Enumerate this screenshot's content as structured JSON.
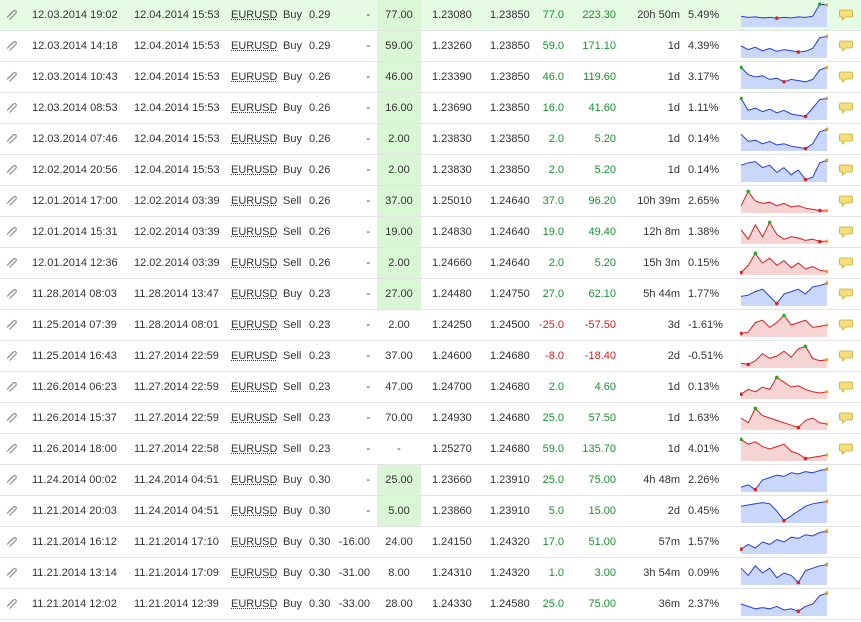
{
  "colors": {
    "positive": "#18922e",
    "negative": "#d42020",
    "buy_fill": "#c9d7fb",
    "buy_line": "#2a3fd0",
    "sell_fill": "#f6d4d4",
    "sell_line": "#d42020"
  },
  "icons": {
    "row_icon": "paperclip-icon",
    "comment_icon": "speech-bubble-icon"
  },
  "trades": [
    {
      "open": "12.03.2014 19:02",
      "close": "12.04.2014 15:53",
      "symbol": "EURUSD",
      "type": "Buy",
      "lots": "0.29",
      "sl": "-",
      "pips": "77.00",
      "open_price": "1.23080",
      "close_price": "1.23850",
      "pips_val": "77.0",
      "profit": "223.30",
      "duration": "20h 50m",
      "gain": "5.49%",
      "comment": true,
      "spark": [
        0.55,
        0.6,
        0.58,
        0.62,
        0.6,
        0.63,
        0.6,
        0.62,
        0.58,
        0.6,
        0.55,
        0.05,
        0.08
      ]
    },
    {
      "open": "12.03.2014 14:18",
      "close": "12.04.2014 15:53",
      "symbol": "EURUSD",
      "type": "Buy",
      "lots": "0.29",
      "sl": "-",
      "pips": "59.00",
      "open_price": "1.23260",
      "close_price": "1.23850",
      "pips_val": "59.0",
      "profit": "171.10",
      "duration": "1d",
      "gain": "4.39%",
      "comment": true,
      "spark": [
        0.5,
        0.65,
        0.55,
        0.7,
        0.6,
        0.72,
        0.65,
        0.7,
        0.75,
        0.72,
        0.6,
        0.15,
        0.1
      ]
    },
    {
      "open": "12.03.2014 10:43",
      "close": "12.04.2014 15:53",
      "symbol": "EURUSD",
      "type": "Buy",
      "lots": "0.26",
      "sl": "-",
      "pips": "46.00",
      "open_price": "1.23390",
      "close_price": "1.23850",
      "pips_val": "46.0",
      "profit": "119.60",
      "duration": "1d",
      "gain": "3.17%",
      "comment": true,
      "spark": [
        0.1,
        0.4,
        0.5,
        0.45,
        0.6,
        0.55,
        0.7,
        0.6,
        0.65,
        0.7,
        0.6,
        0.2,
        0.1
      ]
    },
    {
      "open": "12.03.2014 08:53",
      "close": "12.04.2014 15:53",
      "symbol": "EURUSD",
      "type": "Buy",
      "lots": "0.26",
      "sl": "-",
      "pips": "16.00",
      "open_price": "1.23690",
      "close_price": "1.23850",
      "pips_val": "16.0",
      "profit": "41.60",
      "duration": "1d",
      "gain": "1.11%",
      "comment": true,
      "spark": [
        0.1,
        0.6,
        0.5,
        0.65,
        0.55,
        0.7,
        0.6,
        0.75,
        0.8,
        0.85,
        0.5,
        0.15,
        0.1
      ]
    },
    {
      "open": "12.03.2014 07:46",
      "close": "12.04.2014 15:53",
      "symbol": "EURUSD",
      "type": "Buy",
      "lots": "0.26",
      "sl": "-",
      "pips": "2.00",
      "open_price": "1.23830",
      "close_price": "1.23850",
      "pips_val": "2.0",
      "profit": "5.20",
      "duration": "1d",
      "gain": "0.14%",
      "comment": true,
      "spark": [
        0.3,
        0.6,
        0.55,
        0.7,
        0.6,
        0.75,
        0.7,
        0.8,
        0.85,
        0.9,
        0.7,
        0.2,
        0.1
      ]
    },
    {
      "open": "12.02.2014 20:56",
      "close": "12.04.2014 15:53",
      "symbol": "EURUSD",
      "type": "Buy",
      "lots": "0.26",
      "sl": "-",
      "pips": "2.00",
      "open_price": "1.23830",
      "close_price": "1.23850",
      "pips_val": "2.0",
      "profit": "5.20",
      "duration": "1d",
      "gain": "0.14%",
      "comment": true,
      "spark": [
        0.3,
        0.2,
        0.15,
        0.4,
        0.3,
        0.6,
        0.4,
        0.7,
        0.5,
        0.9,
        0.8,
        0.2,
        0.1
      ]
    },
    {
      "open": "12.01.2014 17:00",
      "close": "12.02.2014 03:39",
      "symbol": "EURUSD",
      "type": "Sell",
      "lots": "0.26",
      "sl": "-",
      "pips": "37.00",
      "open_price": "1.25010",
      "close_price": "1.24640",
      "pips_val": "37.0",
      "profit": "96.20",
      "duration": "10h 39m",
      "gain": "2.65%",
      "comment": true,
      "spark": [
        0.7,
        0.1,
        0.5,
        0.6,
        0.55,
        0.7,
        0.6,
        0.75,
        0.7,
        0.8,
        0.85,
        0.9,
        0.9
      ]
    },
    {
      "open": "12.01.2014 15:31",
      "close": "12.02.2014 03:39",
      "symbol": "EURUSD",
      "type": "Sell",
      "lots": "0.26",
      "sl": "-",
      "pips": "19.00",
      "open_price": "1.24830",
      "close_price": "1.24640",
      "pips_val": "19.0",
      "profit": "49.40",
      "duration": "12h 8m",
      "gain": "1.38%",
      "comment": true,
      "spark": [
        0.4,
        0.8,
        0.2,
        0.7,
        0.1,
        0.6,
        0.8,
        0.7,
        0.75,
        0.85,
        0.8,
        0.9,
        0.88
      ]
    },
    {
      "open": "12.01.2014 12:36",
      "close": "12.02.2014 03:39",
      "symbol": "EURUSD",
      "type": "Sell",
      "lots": "0.26",
      "sl": "-",
      "pips": "2.00",
      "open_price": "1.24660",
      "close_price": "1.24640",
      "pips_val": "2.0",
      "profit": "5.20",
      "duration": "15h 3m",
      "gain": "0.15%",
      "comment": true,
      "spark": [
        0.9,
        0.6,
        0.1,
        0.5,
        0.3,
        0.6,
        0.4,
        0.7,
        0.5,
        0.75,
        0.65,
        0.8,
        0.85
      ]
    },
    {
      "open": "11.28.2014 08:03",
      "close": "11.28.2014 13:47",
      "symbol": "EURUSD",
      "type": "Buy",
      "lots": "0.23",
      "sl": "-",
      "pips": "27.00",
      "open_price": "1.24480",
      "close_price": "1.24750",
      "pips_val": "27.0",
      "profit": "62.10",
      "duration": "5h 44m",
      "gain": "1.77%",
      "comment": true,
      "spark": [
        0.6,
        0.55,
        0.4,
        0.3,
        0.6,
        0.9,
        0.5,
        0.4,
        0.3,
        0.5,
        0.2,
        0.15,
        0.05
      ]
    },
    {
      "open": "11.25.2014 07:39",
      "close": "11.28.2014 08:01",
      "symbol": "EURUSD",
      "type": "Sell",
      "lots": "0.23",
      "sl": "-",
      "pips": "2.00",
      "open_price": "1.24250",
      "close_price": "1.24500",
      "pips_val": "-25.0",
      "profit": "-57.50",
      "duration": "3d",
      "gain": "-1.61%",
      "comment": true,
      "spark": [
        0.85,
        0.8,
        0.4,
        0.3,
        0.6,
        0.4,
        0.1,
        0.5,
        0.4,
        0.3,
        0.6,
        0.55,
        0.5
      ]
    },
    {
      "open": "11.25.2014 16:43",
      "close": "11.27.2014 22:59",
      "symbol": "EURUSD",
      "type": "Sell",
      "lots": "0.23",
      "sl": "-",
      "pips": "37.00",
      "open_price": "1.24600",
      "close_price": "1.24680",
      "pips_val": "-8.0",
      "profit": "-18.40",
      "duration": "2d",
      "gain": "-0.51%",
      "comment": true,
      "spark": [
        0.8,
        0.85,
        0.7,
        0.4,
        0.6,
        0.5,
        0.3,
        0.55,
        0.2,
        0.1,
        0.6,
        0.7,
        0.65
      ]
    },
    {
      "open": "11.26.2014 06:23",
      "close": "11.27.2014 22:59",
      "symbol": "EURUSD",
      "type": "Sell",
      "lots": "0.23",
      "sl": "-",
      "pips": "47.00",
      "open_price": "1.24700",
      "close_price": "1.24680",
      "pips_val": "2.0",
      "profit": "4.60",
      "duration": "1d",
      "gain": "0.13%",
      "comment": true,
      "spark": [
        0.8,
        0.6,
        0.7,
        0.5,
        0.6,
        0.1,
        0.3,
        0.5,
        0.45,
        0.6,
        0.7,
        0.75,
        0.7
      ]
    },
    {
      "open": "11.26.2014 15:37",
      "close": "11.27.2014 22:59",
      "symbol": "EURUSD",
      "type": "Sell",
      "lots": "0.23",
      "sl": "-",
      "pips": "70.00",
      "open_price": "1.24930",
      "close_price": "1.24680",
      "pips_val": "25.0",
      "profit": "57.50",
      "duration": "1d",
      "gain": "1.63%",
      "comment": true,
      "spark": [
        0.5,
        0.7,
        0.1,
        0.4,
        0.5,
        0.6,
        0.7,
        0.8,
        0.9,
        0.6,
        0.5,
        0.7,
        0.75
      ]
    },
    {
      "open": "11.26.2014 18:00",
      "close": "11.27.2014 22:58",
      "symbol": "EURUSD",
      "type": "Sell",
      "lots": "0.23",
      "sl": "-",
      "pips": "-",
      "open_price": "1.25270",
      "close_price": "1.24680",
      "pips_val": "59.0",
      "profit": "135.70",
      "duration": "1d",
      "gain": "4.01%",
      "comment": true,
      "spark": [
        0.1,
        0.3,
        0.2,
        0.4,
        0.5,
        0.4,
        0.3,
        0.6,
        0.7,
        0.9,
        0.85,
        0.8,
        0.75
      ]
    },
    {
      "open": "11.24.2014 00:02",
      "close": "11.24.2014 04:51",
      "symbol": "EURUSD",
      "type": "Buy",
      "lots": "0.30",
      "sl": "-",
      "pips": "25.00",
      "open_price": "1.23660",
      "close_price": "1.23910",
      "pips_val": "25.0",
      "profit": "75.00",
      "duration": "4h 48m",
      "gain": "2.26%",
      "comment": false,
      "spark": [
        0.8,
        0.7,
        0.9,
        0.5,
        0.4,
        0.3,
        0.35,
        0.2,
        0.25,
        0.15,
        0.2,
        0.1,
        0.05
      ]
    },
    {
      "open": "11.21.2014 20:03",
      "close": "11.24.2014 04:51",
      "symbol": "EURUSD",
      "type": "Buy",
      "lots": "0.30",
      "sl": "-",
      "pips": "5.00",
      "open_price": "1.23860",
      "close_price": "1.23910",
      "pips_val": "5.0",
      "profit": "15.00",
      "duration": "2d",
      "gain": "0.45%",
      "comment": false,
      "spark": [
        0.3,
        0.25,
        0.2,
        0.15,
        0.2,
        0.5,
        0.9,
        0.7,
        0.5,
        0.3,
        0.2,
        0.15,
        0.1
      ]
    },
    {
      "open": "11.21.2014 16:12",
      "close": "11.21.2014 17:10",
      "symbol": "EURUSD",
      "type": "Buy",
      "lots": "0.30",
      "sl": "-16.00",
      "pips": "24.00",
      "open_price": "1.24150",
      "close_price": "1.24320",
      "pips_val": "17.0",
      "profit": "51.00",
      "duration": "57m",
      "gain": "1.57%",
      "comment": false,
      "spark": [
        0.8,
        0.6,
        0.75,
        0.5,
        0.6,
        0.4,
        0.5,
        0.3,
        0.35,
        0.2,
        0.25,
        0.1,
        0.05
      ]
    },
    {
      "open": "11.21.2014 13:14",
      "close": "11.21.2014 17:09",
      "symbol": "EURUSD",
      "type": "Buy",
      "lots": "0.30",
      "sl": "-31.00",
      "pips": "8.00",
      "open_price": "1.24310",
      "close_price": "1.24320",
      "pips_val": "1.0",
      "profit": "3.00",
      "duration": "3h 54m",
      "gain": "0.09%",
      "comment": false,
      "spark": [
        0.3,
        0.6,
        0.2,
        0.5,
        0.3,
        0.7,
        0.5,
        0.6,
        0.9,
        0.4,
        0.3,
        0.2,
        0.15
      ]
    },
    {
      "open": "11.21.2014 12:02",
      "close": "11.21.2014 12:39",
      "symbol": "EURUSD",
      "type": "Buy",
      "lots": "0.30",
      "sl": "-33.00",
      "pips": "28.00",
      "open_price": "1.24330",
      "close_price": "1.24580",
      "pips_val": "25.0",
      "profit": "75.00",
      "duration": "36m",
      "gain": "2.37%",
      "comment": false,
      "spark": [
        0.5,
        0.6,
        0.7,
        0.65,
        0.7,
        0.6,
        0.75,
        0.7,
        0.8,
        0.6,
        0.5,
        0.15,
        0.05
      ]
    }
  ]
}
